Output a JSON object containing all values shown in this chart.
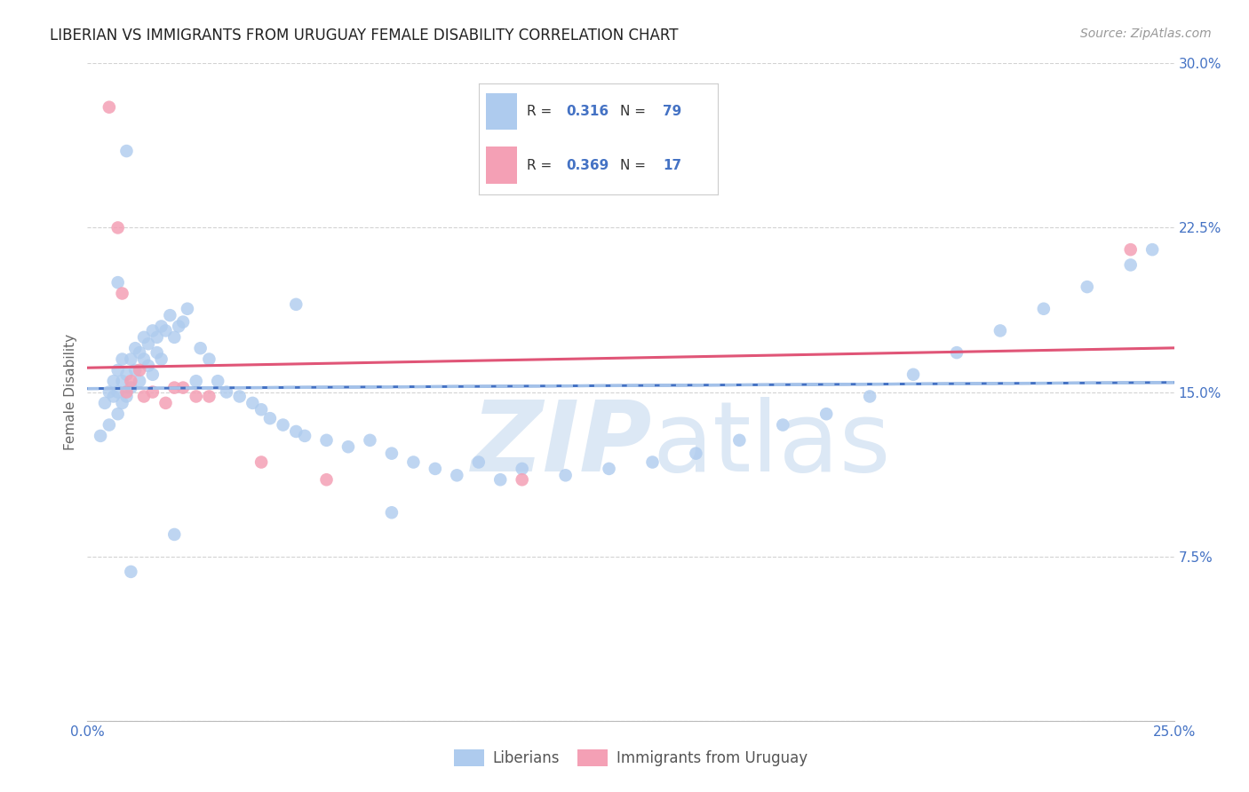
{
  "title": "LIBERIAN VS IMMIGRANTS FROM URUGUAY FEMALE DISABILITY CORRELATION CHART",
  "source": "Source: ZipAtlas.com",
  "ylabel": "Female Disability",
  "xlim": [
    0.0,
    0.25
  ],
  "ylim": [
    0.0,
    0.3
  ],
  "xticks": [
    0.0,
    0.05,
    0.1,
    0.15,
    0.2,
    0.25
  ],
  "yticks": [
    0.0,
    0.075,
    0.15,
    0.225,
    0.3
  ],
  "ytick_labels": [
    "",
    "7.5%",
    "15.0%",
    "22.5%",
    "30.0%"
  ],
  "blue_color": "#aecbee",
  "pink_color": "#f4a0b5",
  "blue_line_color": "#4472c4",
  "pink_line_color": "#e05577",
  "dashed_line_color": "#aecbee",
  "background_color": "#ffffff",
  "grid_color": "#c8c8c8",
  "title_color": "#222222",
  "source_color": "#999999",
  "watermark_color": "#dce8f5",
  "R_blue": 0.316,
  "N_blue": 79,
  "R_pink": 0.369,
  "N_pink": 17,
  "blue_x": [
    0.003,
    0.004,
    0.005,
    0.005,
    0.006,
    0.006,
    0.007,
    0.007,
    0.007,
    0.008,
    0.008,
    0.008,
    0.009,
    0.009,
    0.01,
    0.01,
    0.011,
    0.011,
    0.012,
    0.012,
    0.013,
    0.013,
    0.014,
    0.014,
    0.015,
    0.015,
    0.016,
    0.016,
    0.017,
    0.017,
    0.018,
    0.019,
    0.02,
    0.021,
    0.022,
    0.023,
    0.025,
    0.026,
    0.028,
    0.03,
    0.032,
    0.035,
    0.038,
    0.04,
    0.042,
    0.045,
    0.048,
    0.05,
    0.055,
    0.06,
    0.065,
    0.07,
    0.075,
    0.08,
    0.085,
    0.09,
    0.095,
    0.1,
    0.11,
    0.12,
    0.13,
    0.14,
    0.15,
    0.16,
    0.17,
    0.18,
    0.19,
    0.2,
    0.21,
    0.22,
    0.23,
    0.24,
    0.245,
    0.048,
    0.07,
    0.02,
    0.01,
    0.007,
    0.009
  ],
  "blue_y": [
    0.13,
    0.145,
    0.15,
    0.135,
    0.148,
    0.155,
    0.14,
    0.15,
    0.16,
    0.145,
    0.155,
    0.165,
    0.148,
    0.158,
    0.152,
    0.165,
    0.16,
    0.17,
    0.155,
    0.168,
    0.165,
    0.175,
    0.162,
    0.172,
    0.158,
    0.178,
    0.168,
    0.175,
    0.165,
    0.18,
    0.178,
    0.185,
    0.175,
    0.18,
    0.182,
    0.188,
    0.155,
    0.17,
    0.165,
    0.155,
    0.15,
    0.148,
    0.145,
    0.142,
    0.138,
    0.135,
    0.132,
    0.13,
    0.128,
    0.125,
    0.128,
    0.122,
    0.118,
    0.115,
    0.112,
    0.118,
    0.11,
    0.115,
    0.112,
    0.115,
    0.118,
    0.122,
    0.128,
    0.135,
    0.14,
    0.148,
    0.158,
    0.168,
    0.178,
    0.188,
    0.198,
    0.208,
    0.215,
    0.19,
    0.095,
    0.085,
    0.068,
    0.2,
    0.26
  ],
  "pink_x": [
    0.005,
    0.007,
    0.008,
    0.009,
    0.01,
    0.012,
    0.013,
    0.015,
    0.018,
    0.02,
    0.022,
    0.025,
    0.028,
    0.04,
    0.055,
    0.24,
    0.1
  ],
  "pink_y": [
    0.28,
    0.225,
    0.195,
    0.15,
    0.155,
    0.16,
    0.148,
    0.15,
    0.145,
    0.152,
    0.152,
    0.148,
    0.148,
    0.118,
    0.11,
    0.215,
    0.11
  ]
}
